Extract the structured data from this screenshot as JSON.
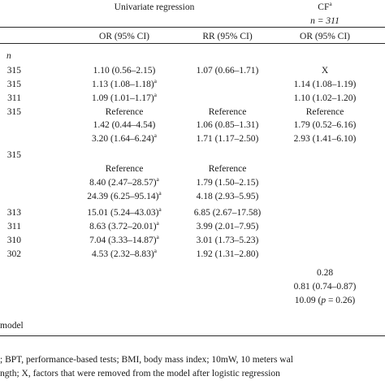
{
  "header": {
    "group_title": "Univariate regression",
    "cf_title": "CF",
    "cf_sup": "a",
    "cf_n": "n = 311",
    "col_or": "OR (95% CI)",
    "col_rr": "RR (95% CI)",
    "col_cf_or": "OR (95% CI)",
    "n_label": "n"
  },
  "rows": [
    {
      "n": "315",
      "or": "1.10 (0.56–2.15)",
      "or_sup": "",
      "rr": "1.07 (0.66–1.71)",
      "cf": "X"
    },
    {
      "n": "315",
      "or": "1.13 (1.08–1.18)",
      "or_sup": "a",
      "rr": "",
      "cf": "1.14 (1.08–1.19)"
    },
    {
      "n": "311",
      "or": "1.09 (1.01–1.17)",
      "or_sup": "a",
      "rr": "",
      "cf": "1.10 (1.02–1.20)"
    },
    {
      "n": "315",
      "or": "Reference",
      "or_sup": "",
      "rr": "Reference",
      "cf": "Reference"
    },
    {
      "n": "",
      "or": "1.42 (0.44–4.54)",
      "or_sup": "",
      "rr": "1.06 (0.85–1.31)",
      "cf": "1.79 (0.52–6.16)"
    },
    {
      "n": "",
      "or": "3.20 (1.64–6.24)",
      "or_sup": "a",
      "rr": "1.71 (1.17–2.50)",
      "cf": "2.93 (1.41–6.10)"
    },
    {
      "n": "315",
      "or": "",
      "or_sup": "",
      "rr": "",
      "cf": ""
    },
    {
      "n": "",
      "or": "Reference",
      "or_sup": "",
      "rr": "Reference",
      "cf": ""
    },
    {
      "n": "",
      "or": "8.40 (2.47–28.57)",
      "or_sup": "a",
      "rr": "1.79 (1.50–2.15)",
      "cf": ""
    },
    {
      "n": "",
      "or": "24.39 (6.25–95.14)",
      "or_sup": "a",
      "rr": "4.18 (2.93–5.95)",
      "cf": ""
    },
    {
      "n": "313",
      "or": "15.01 (5.24–43.03)",
      "or_sup": "a",
      "rr": "6.85 (2.67–17.58)",
      "cf": ""
    },
    {
      "n": "311",
      "or": "8.63 (3.72–20.01)",
      "or_sup": "a",
      "rr": "3.99 (2.01–7.95)",
      "cf": ""
    },
    {
      "n": "310",
      "or": "7.04 (3.33–14.87)",
      "or_sup": "a",
      "rr": "3.01 (1.73–5.23)",
      "cf": ""
    },
    {
      "n": "302",
      "or": "4.53 (2.32–8.83)",
      "or_sup": "a",
      "rr": "1.92 (1.31–2.80)",
      "cf": ""
    }
  ],
  "model_stats": {
    "stat1": "0.28",
    "stat2": "0.81 (0.74–0.87)",
    "stat3_value": "10.09 (",
    "stat3_p": "p",
    "stat3_rest": " = 0.26)"
  },
  "footer": {
    "model_label": "model",
    "note_line1": "; BPT, performance-based tests; BMI, body mass index; 10mW, 10 meters wal",
    "note_line2": "ngth; X, factors that were removed from the model after logistic regression"
  }
}
